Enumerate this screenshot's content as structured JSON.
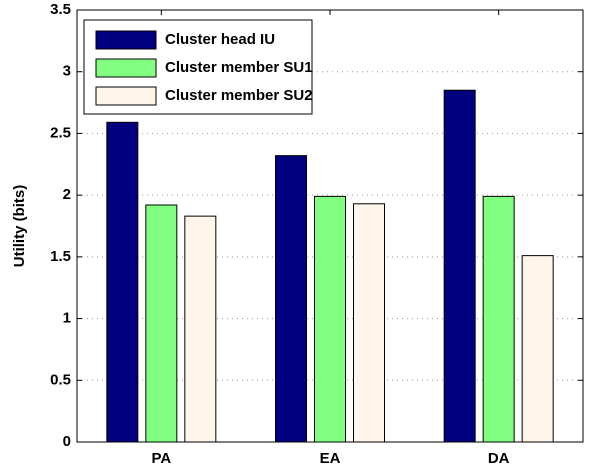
{
  "chart_data": {
    "type": "bar",
    "y_label": "Utility (bits)",
    "categories": [
      "PA",
      "EA",
      "DA"
    ],
    "series": [
      {
        "name": "Cluster head IU",
        "color": "#000080",
        "values": [
          2.59,
          2.32,
          2.85
        ]
      },
      {
        "name": "Cluster member SU1",
        "color": "#80ff80",
        "values": [
          1.92,
          1.99,
          1.99
        ]
      },
      {
        "name": "Cluster member SU2",
        "color": "#fff5eb",
        "values": [
          1.83,
          1.93,
          1.51
        ]
      }
    ],
    "ylim": [
      0,
      3.5
    ],
    "yticks": [
      0,
      0.5,
      1,
      1.5,
      2,
      2.5,
      3,
      3.5
    ],
    "grid": true,
    "legend": "upper left"
  }
}
